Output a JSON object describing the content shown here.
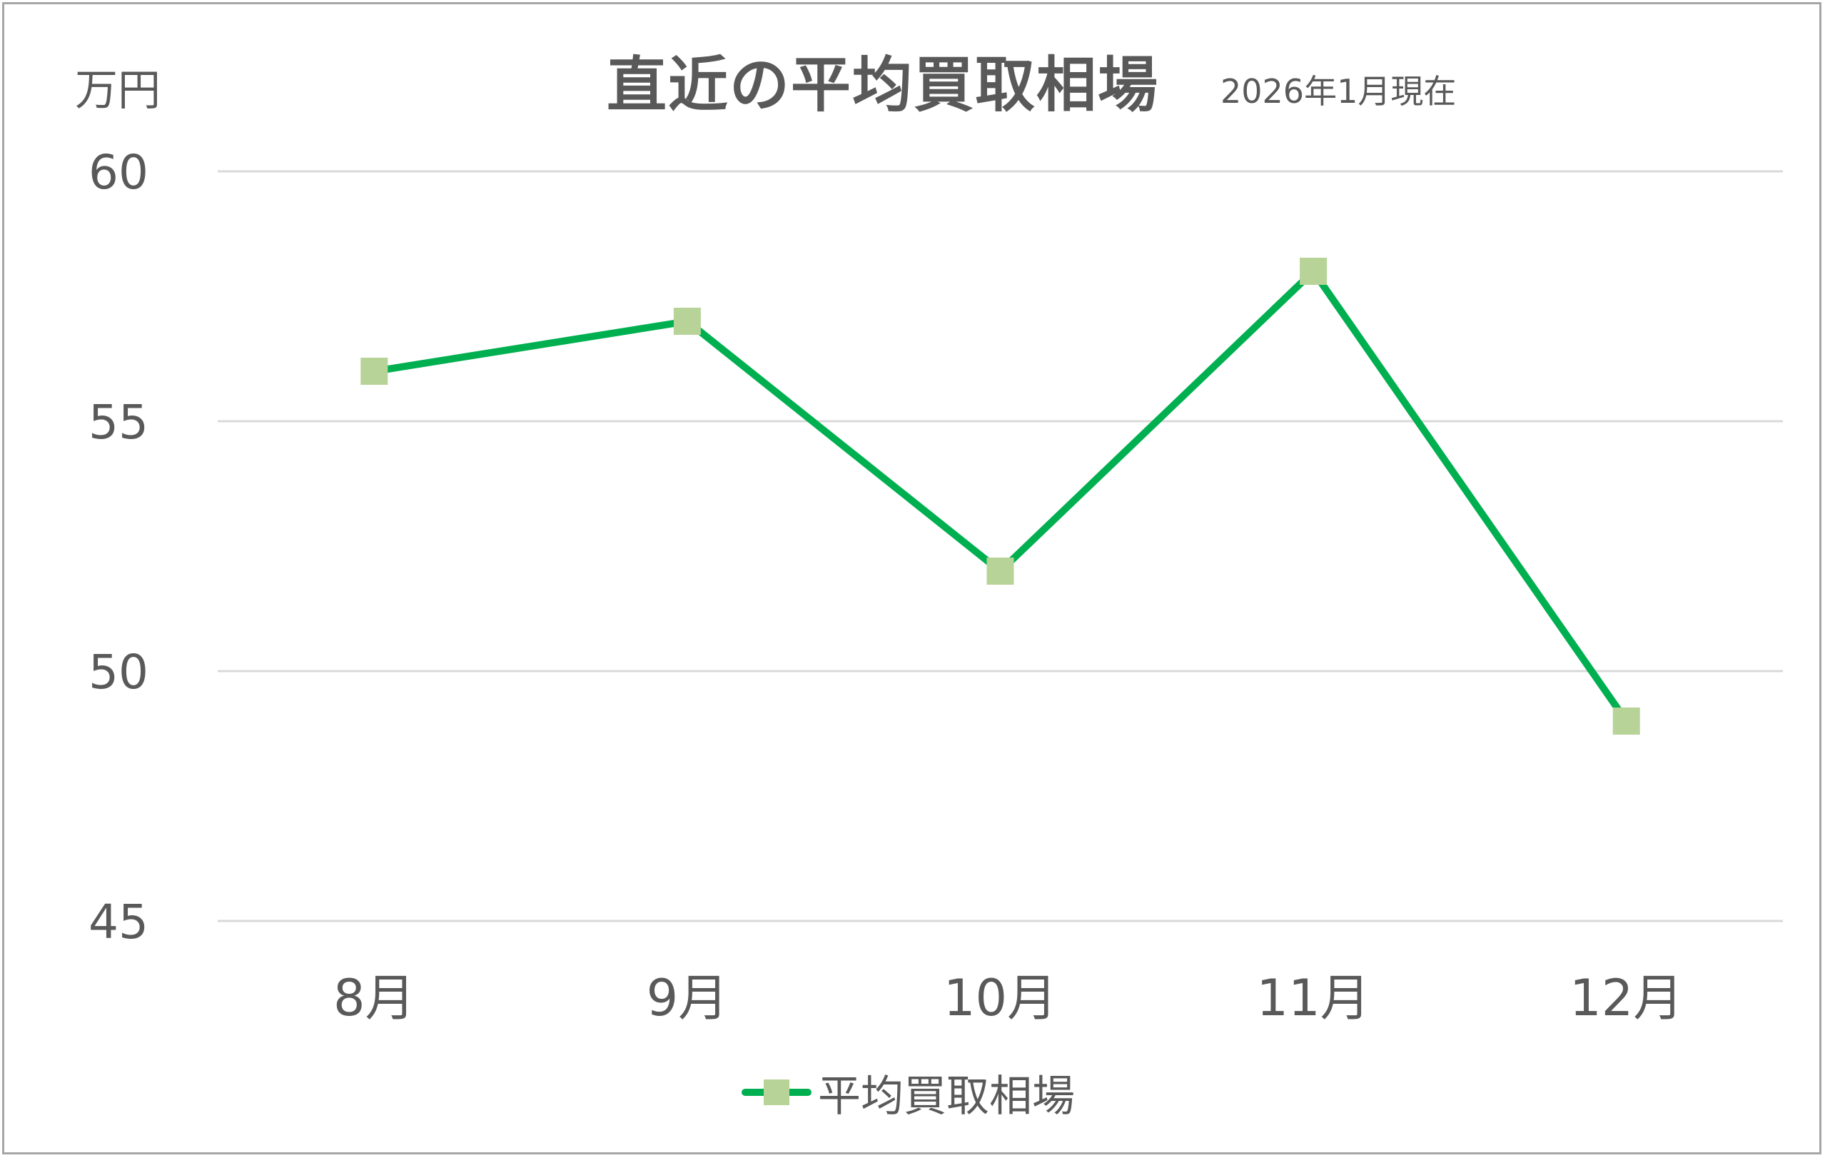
{
  "chart_data": {
    "type": "line",
    "title": "直近の平均買取相場",
    "subtitle": "2026年1月現在",
    "ylabel": "万円",
    "xlabel": "",
    "categories": [
      "8月",
      "9月",
      "10月",
      "11月",
      "12月"
    ],
    "series": [
      {
        "name": "平均買取相場",
        "values": [
          56,
          57,
          52,
          58,
          49
        ],
        "line_color": "#00b050",
        "marker_color": "#b7d397",
        "marker": "square"
      }
    ],
    "ylim": [
      45,
      60
    ],
    "yticks": [
      60,
      55,
      50,
      45
    ],
    "grid": true,
    "gridline_color": "#d9d9d9",
    "legend_position": "bottom"
  }
}
